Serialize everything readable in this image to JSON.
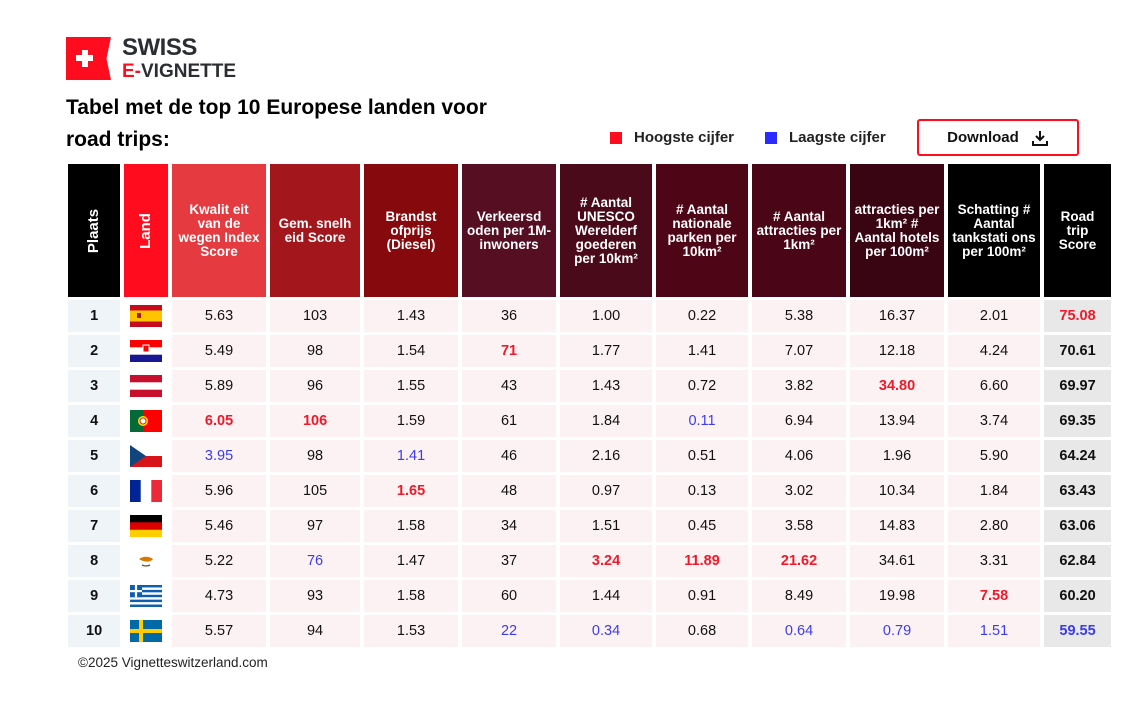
{
  "logo": {
    "line1": "SWISS",
    "line2_prefix": "E-",
    "line2_rest": "VIGNETTE"
  },
  "title": "Tabel met de top 10 Europese landen voor road trips:",
  "legend": {
    "high_label": "Hoogste cijfer",
    "low_label": "Laagste cijfer",
    "high_color": "#ff0d1f",
    "low_color": "#2b2bff"
  },
  "download": {
    "label": "Download",
    "icon": "download-icon"
  },
  "table": {
    "headers": [
      {
        "label": "Plaats",
        "color": "#000000"
      },
      {
        "label": "Land",
        "color": "#ff0d1f"
      },
      {
        "label": "Kwalit eit van de wegen Index Score",
        "color": "#e53a40"
      },
      {
        "label": "Gem. snelh eid Score",
        "color": "#a3171c"
      },
      {
        "label": "Brandst ofprijs (Diesel)",
        "color": "#86090e"
      },
      {
        "label": "Verkeersd oden per 1M- inwoners",
        "color": "#560f22"
      },
      {
        "label": "# Aantal UNESCO Werelderf goederen per 10km²",
        "color": "#4a0a1a"
      },
      {
        "label": "# Aantal nationale parken per 10km²",
        "color": "#4e0616"
      },
      {
        "label": "# Aantal attracties per 1km²",
        "color": "#4a0516"
      },
      {
        "label": "attracties per 1km² # Aantal hotels per 100m²",
        "color": "#3a0512"
      },
      {
        "label": "Schatting # Aantal tankstati ons per 100m²",
        "color": "#000000"
      },
      {
        "label": "Road trip Score",
        "color": "#000000"
      }
    ],
    "rows": [
      {
        "rank": "1",
        "flag": "spain-flag",
        "values": [
          "5.63",
          "103",
          "1.43",
          "36",
          "1.00",
          "0.22",
          "5.38",
          "16.37",
          "2.01",
          "75.08"
        ],
        "highlight": [
          "",
          "",
          "",
          "",
          "",
          "",
          "",
          "",
          "",
          "high"
        ]
      },
      {
        "rank": "2",
        "flag": "croatia-flag",
        "values": [
          "5.49",
          "98",
          "1.54",
          "71",
          "1.77",
          "1.41",
          "7.07",
          "12.18",
          "4.24",
          "70.61"
        ],
        "highlight": [
          "",
          "",
          "",
          "high",
          "",
          "",
          "",
          "",
          "",
          ""
        ]
      },
      {
        "rank": "3",
        "flag": "austria-flag",
        "values": [
          "5.89",
          "96",
          "1.55",
          "43",
          "1.43",
          "0.72",
          "3.82",
          "34.80",
          "6.60",
          "69.97"
        ],
        "highlight": [
          "",
          "",
          "",
          "",
          "",
          "",
          "",
          "high",
          "",
          ""
        ]
      },
      {
        "rank": "4",
        "flag": "portugal-flag",
        "values": [
          "6.05",
          "106",
          "1.59",
          "61",
          "1.84",
          "0.11",
          "6.94",
          "13.94",
          "3.74",
          "69.35"
        ],
        "highlight": [
          "high",
          "high",
          "",
          "",
          "",
          "low",
          "",
          "",
          "",
          ""
        ]
      },
      {
        "rank": "5",
        "flag": "czech-flag",
        "values": [
          "3.95",
          "98",
          "1.41",
          "46",
          "2.16",
          "0.51",
          "4.06",
          "1.96",
          "5.90",
          "64.24"
        ],
        "highlight": [
          "low",
          "",
          "low",
          "",
          "",
          "",
          "",
          "",
          "",
          ""
        ]
      },
      {
        "rank": "6",
        "flag": "france-flag",
        "values": [
          "5.96",
          "105",
          "1.65",
          "48",
          "0.97",
          "0.13",
          "3.02",
          "10.34",
          "1.84",
          "63.43"
        ],
        "highlight": [
          "",
          "",
          "high",
          "",
          "",
          "",
          "",
          "",
          "",
          ""
        ]
      },
      {
        "rank": "7",
        "flag": "germany-flag",
        "values": [
          "5.46",
          "97",
          "1.58",
          "34",
          "1.51",
          "0.45",
          "3.58",
          "14.83",
          "2.80",
          "63.06"
        ],
        "highlight": [
          "",
          "",
          "",
          "",
          "",
          "",
          "",
          "",
          "",
          ""
        ]
      },
      {
        "rank": "8",
        "flag": "cyprus-flag",
        "values": [
          "5.22",
          "76",
          "1.47",
          "37",
          "3.24",
          "11.89",
          "21.62",
          "34.61",
          "3.31",
          "62.84"
        ],
        "highlight": [
          "",
          "low",
          "",
          "",
          "high",
          "high",
          "high",
          "",
          "",
          ""
        ]
      },
      {
        "rank": "9",
        "flag": "greece-flag",
        "values": [
          "4.73",
          "93",
          "1.58",
          "60",
          "1.44",
          "0.91",
          "8.49",
          "19.98",
          "7.58",
          "60.20"
        ],
        "highlight": [
          "",
          "",
          "",
          "",
          "",
          "",
          "",
          "",
          "high",
          ""
        ]
      },
      {
        "rank": "10",
        "flag": "sweden-flag",
        "values": [
          "5.57",
          "94",
          "1.53",
          "22",
          "0.34",
          "0.68",
          "0.64",
          "0.79",
          "1.51",
          "59.55"
        ],
        "highlight": [
          "",
          "",
          "",
          "low",
          "low",
          "",
          "low",
          "low",
          "low",
          "low"
        ]
      }
    ]
  },
  "footer": "©2025 Vignetteswitzerland.com"
}
